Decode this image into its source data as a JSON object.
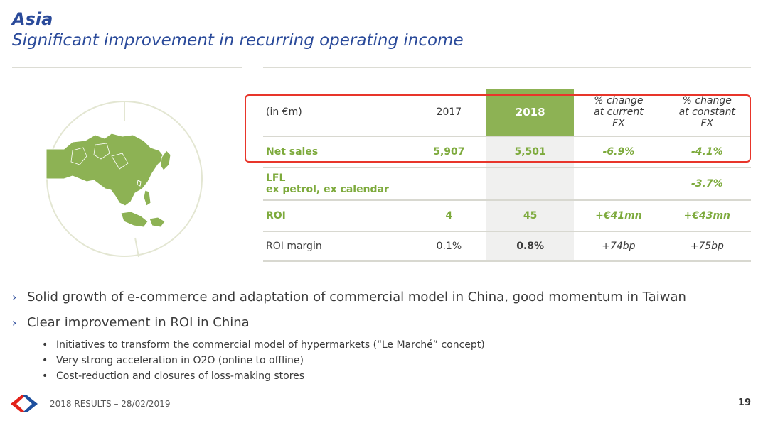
{
  "header": {
    "title": "Asia",
    "subtitle": "Significant improvement in recurring operating income"
  },
  "table": {
    "header": {
      "label": "(in €m)",
      "col_2017": "2017",
      "col_2018": "2018",
      "chg_current": [
        "% change",
        "at current",
        "FX"
      ],
      "chg_constant": [
        "% change",
        "at constant",
        "FX"
      ]
    },
    "rows": {
      "net_sales": {
        "label": "Net sales",
        "v2017": "5,907",
        "v2018": "5,501",
        "chg_current": "-6.9%",
        "chg_constant": "-4.1%"
      },
      "lfl": {
        "label_line1": "LFL",
        "label_line2": "ex petrol, ex calendar",
        "chg_constant": "-3.7%"
      },
      "roi": {
        "label": "ROI",
        "v2017": "4",
        "v2018": "45",
        "chg_current": "+€41mn",
        "chg_constant": "+€43mn"
      },
      "roi_margin": {
        "label": "ROI margin",
        "v2017": "0.1%",
        "v2018": "0.8%",
        "chg_current": "+74bp",
        "chg_constant": "+75bp"
      }
    }
  },
  "bullets": {
    "b1": "Solid growth of e-commerce and adaptation of commercial model in China, good momentum in Taiwan",
    "b2": "Clear improvement in ROI in China",
    "subs": [
      "Initiatives to transform the commercial model of hypermarkets (“Le Marché” concept)",
      "Very strong acceleration in O2O (online to offline)",
      "Cost-reduction and closures of loss-making stores"
    ]
  },
  "footer": {
    "text": "2018 RESULTS – 28/02/2019",
    "page": "19"
  },
  "colors": {
    "title_blue": "#2a4a9a",
    "accent_green": "#8db254",
    "highlight_red": "#e8352a"
  }
}
